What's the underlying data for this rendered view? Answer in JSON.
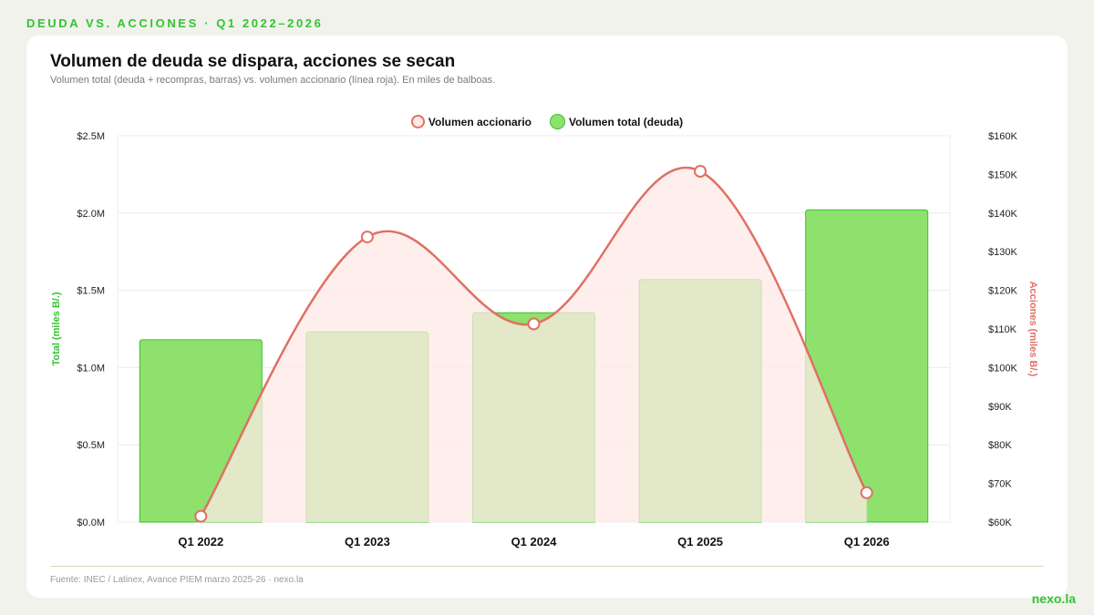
{
  "kicker": "DEUDA VS. ACCIONES · Q1 2022–2026",
  "title": "Volumen de deuda se dispara, acciones se secan",
  "subtitle": "Volumen total (deuda + recompras, barras) vs. volumen accionario (línea roja). En miles de balboas.",
  "legend": {
    "line_label": "Volumen accionario",
    "bar_label": "Volumen total (deuda)"
  },
  "source": "Fuente: INEC / Latinex, Avance PIEM marzo 2025-26 · nexo.la",
  "brand": "nexo.la",
  "colors": {
    "bar_fill": "#8ee16c",
    "bar_stroke": "#3cbf2e",
    "line": "#e07064",
    "area": "#fde9e7",
    "left_axis_title": "#33c431",
    "right_axis_title": "#e07064"
  },
  "chart_data": {
    "type": "bar",
    "categories": [
      "Q1 2022",
      "Q1 2023",
      "Q1 2024",
      "Q1 2025",
      "Q1 2026"
    ],
    "series": [
      {
        "name": "Volumen total (deuda)",
        "type": "bar",
        "axis": "left",
        "values": [
          1180000,
          1230000,
          1355000,
          1570000,
          2020000
        ]
      },
      {
        "name": "Volumen accionario",
        "type": "line",
        "axis": "right",
        "values": [
          61500,
          133800,
          111300,
          150800,
          67600
        ]
      }
    ],
    "y_left": {
      "label": "Total (miles B/.)",
      "ylim": [
        0,
        2500000
      ],
      "ticks": [
        "$0.0M",
        "$0.5M",
        "$1.0M",
        "$1.5M",
        "$2.0M",
        "$2.5M"
      ]
    },
    "y_right": {
      "label": "Acciones (miles B/.)",
      "ylim": [
        60000,
        160000
      ],
      "ticks": [
        "$60K",
        "$70K",
        "$80K",
        "$90K",
        "$100K",
        "$110K",
        "$120K",
        "$130K",
        "$140K",
        "$150K",
        "$160K"
      ]
    },
    "grid": true,
    "legend_position": "top-center"
  }
}
